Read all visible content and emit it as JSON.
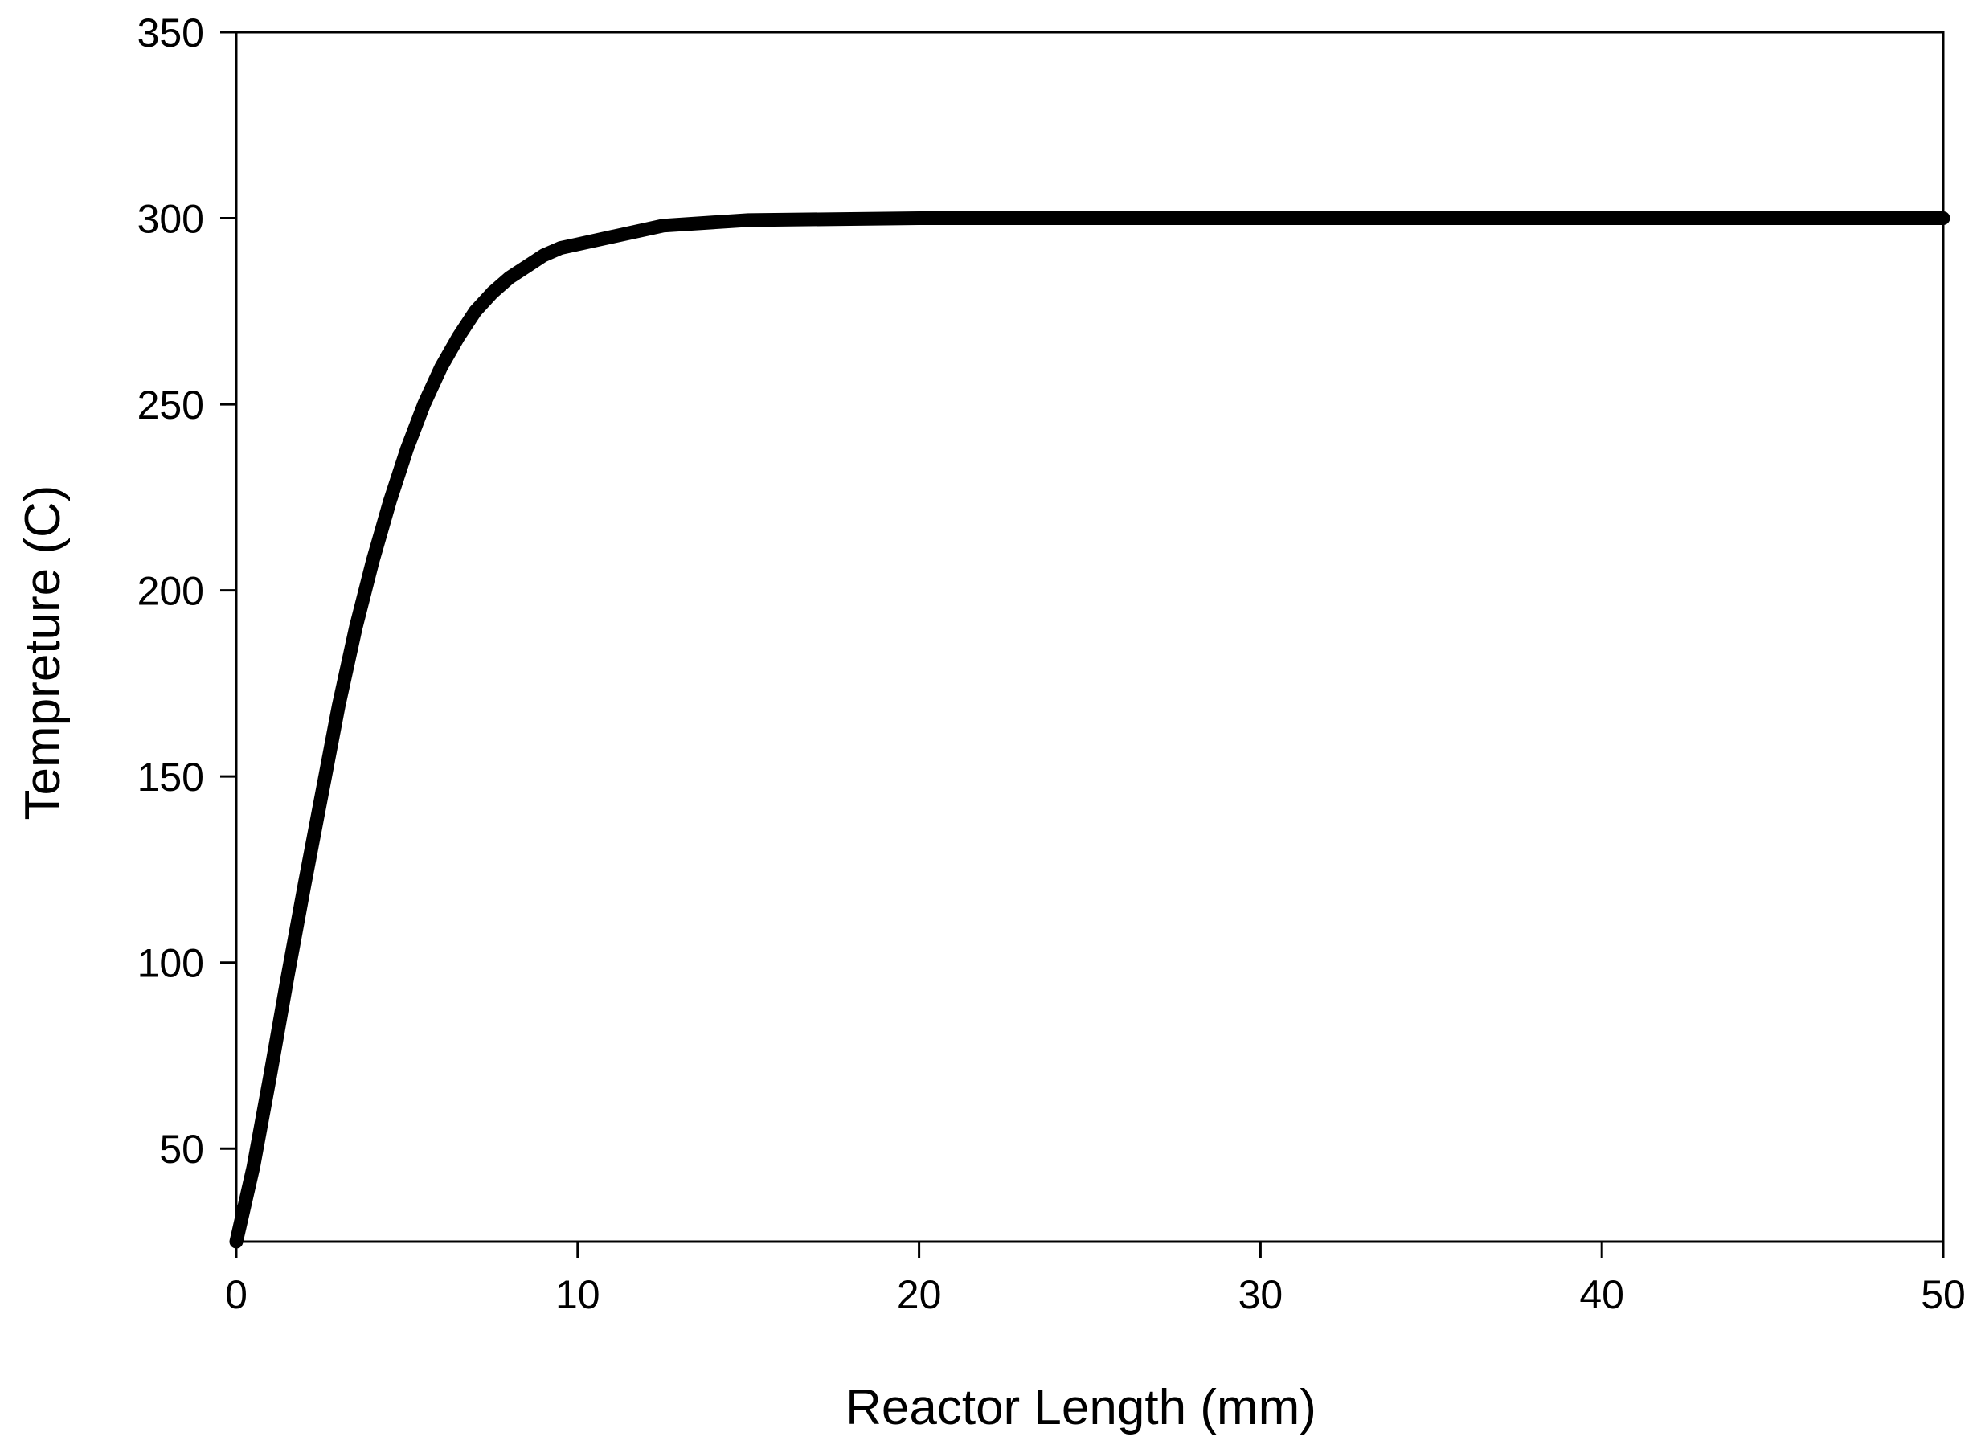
{
  "chart_data": {
    "type": "line",
    "title": "",
    "xlabel": "Reactor Length (mm)",
    "ylabel": "Tempreture (C)",
    "xlim": [
      0,
      50
    ],
    "ylim": [
      25,
      350
    ],
    "x_ticks": [
      0,
      10,
      20,
      30,
      40,
      50
    ],
    "y_ticks": [
      50,
      100,
      150,
      200,
      250,
      300,
      350
    ],
    "grid": false,
    "legend": "none",
    "line_color": "#000000",
    "series": [
      {
        "x": [
          0,
          0.5,
          1,
          1.5,
          2,
          2.5,
          3,
          3.5,
          4,
          4.5,
          5,
          5.5,
          6,
          6.5,
          7,
          7.5,
          8,
          8.5,
          9,
          9.5,
          10,
          11,
          12.5,
          15,
          20,
          30,
          40,
          50
        ],
        "y": [
          25,
          45,
          70,
          96,
          121,
          145,
          169,
          190,
          208,
          224,
          238,
          250,
          260,
          268,
          275,
          280,
          284,
          287,
          290,
          292,
          293,
          295,
          298,
          299.5,
          300,
          300,
          300,
          300
        ]
      }
    ]
  }
}
